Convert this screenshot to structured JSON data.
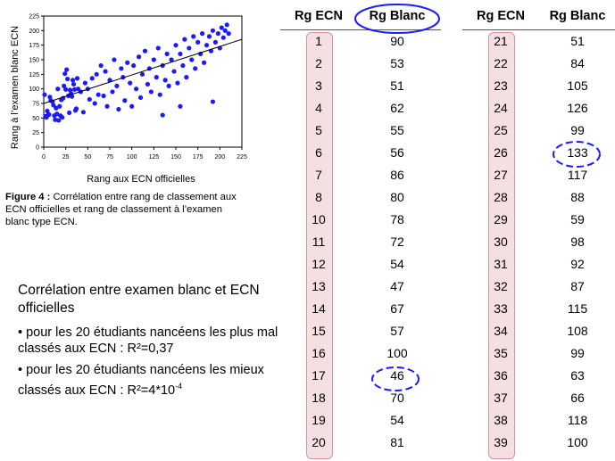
{
  "chart_data": {
    "type": "scatter",
    "xlabel": "Rang aux ECN officielles",
    "ylabel": "Rang à l’examen blanc ECN",
    "xlim": [
      0,
      225
    ],
    "ylim": [
      0,
      225
    ],
    "xticks": [
      "0",
      "25",
      "50",
      "75",
      "100",
      "125",
      "150",
      "175",
      "200",
      "225"
    ],
    "yticks": [
      "0",
      "25",
      "50",
      "75",
      "100",
      "125",
      "150",
      "175",
      "200",
      "225"
    ],
    "point_color": "#1a1aff",
    "trendline": {
      "x": [
        0,
        225
      ],
      "y": [
        75,
        185
      ]
    },
    "points": [
      [
        1,
        90
      ],
      [
        2,
        53
      ],
      [
        3,
        51
      ],
      [
        4,
        62
      ],
      [
        5,
        55
      ],
      [
        6,
        56
      ],
      [
        7,
        86
      ],
      [
        8,
        80
      ],
      [
        10,
        78
      ],
      [
        11,
        72
      ],
      [
        12,
        54
      ],
      [
        13,
        47
      ],
      [
        14,
        67
      ],
      [
        15,
        57
      ],
      [
        16,
        100
      ],
      [
        17,
        46
      ],
      [
        18,
        70
      ],
      [
        19,
        54
      ],
      [
        20,
        81
      ],
      [
        21,
        51
      ],
      [
        22,
        84
      ],
      [
        23,
        105
      ],
      [
        24,
        126
      ],
      [
        25,
        99
      ],
      [
        26,
        133
      ],
      [
        27,
        117
      ],
      [
        28,
        88
      ],
      [
        29,
        59
      ],
      [
        30,
        98
      ],
      [
        31,
        92
      ],
      [
        32,
        87
      ],
      [
        33,
        115
      ],
      [
        34,
        108
      ],
      [
        35,
        99
      ],
      [
        36,
        63
      ],
      [
        37,
        66
      ],
      [
        38,
        118
      ],
      [
        39,
        100
      ],
      [
        42,
        95
      ],
      [
        45,
        60
      ],
      [
        47,
        110
      ],
      [
        50,
        100
      ],
      [
        52,
        82
      ],
      [
        55,
        118
      ],
      [
        58,
        75
      ],
      [
        60,
        125
      ],
      [
        62,
        90
      ],
      [
        65,
        140
      ],
      [
        68,
        88
      ],
      [
        70,
        130
      ],
      [
        72,
        70
      ],
      [
        75,
        115
      ],
      [
        78,
        95
      ],
      [
        80,
        150
      ],
      [
        83,
        105
      ],
      [
        85,
        65
      ],
      [
        88,
        135
      ],
      [
        90,
        120
      ],
      [
        92,
        80
      ],
      [
        95,
        145
      ],
      [
        98,
        110
      ],
      [
        100,
        70
      ],
      [
        102,
        140
      ],
      [
        105,
        100
      ],
      [
        108,
        155
      ],
      [
        110,
        85
      ],
      [
        112,
        125
      ],
      [
        115,
        165
      ],
      [
        118,
        108
      ],
      [
        120,
        135
      ],
      [
        122,
        95
      ],
      [
        125,
        150
      ],
      [
        128,
        120
      ],
      [
        130,
        170
      ],
      [
        132,
        90
      ],
      [
        135,
        140
      ],
      [
        138,
        115
      ],
      [
        140,
        160
      ],
      [
        142,
        105
      ],
      [
        145,
        150
      ],
      [
        148,
        130
      ],
      [
        150,
        175
      ],
      [
        152,
        110
      ],
      [
        155,
        160
      ],
      [
        158,
        140
      ],
      [
        160,
        185
      ],
      [
        162,
        120
      ],
      [
        165,
        170
      ],
      [
        168,
        150
      ],
      [
        170,
        190
      ],
      [
        172,
        135
      ],
      [
        175,
        180
      ],
      [
        178,
        160
      ],
      [
        180,
        195
      ],
      [
        182,
        145
      ],
      [
        185,
        175
      ],
      [
        188,
        190
      ],
      [
        190,
        165
      ],
      [
        192,
        200
      ],
      [
        195,
        180
      ],
      [
        198,
        195
      ],
      [
        200,
        170
      ],
      [
        202,
        205
      ],
      [
        204,
        188
      ],
      [
        206,
        200
      ],
      [
        208,
        210
      ],
      [
        210,
        195
      ],
      [
        192,
        78
      ],
      [
        155,
        70
      ],
      [
        135,
        55
      ]
    ]
  },
  "caption": {
    "label": "Figure 4 :",
    "text": " Corrélation entre rang de classement aux ECN officielles et rang de classement à l’examen blanc type ECN."
  },
  "text": {
    "heading": "Corrélation entre examen blanc et ECN officielles",
    "bullet1": "• pour les 20 étudiants nancéens les plus mal classés aux ECN : R²=0,37",
    "bullet2_main": "• pour les 20 étudiants nancéens les mieux classés aux ECN : R²=4*10",
    "bullet2_exp": "-4"
  },
  "table": {
    "col_rank": "Rg ECN",
    "col_blank": "Rg Blanc",
    "left": [
      [
        "1",
        "90"
      ],
      [
        "2",
        "53"
      ],
      [
        "3",
        "51"
      ],
      [
        "4",
        "62"
      ],
      [
        "5",
        "55"
      ],
      [
        "6",
        "56"
      ],
      [
        "7",
        "86"
      ],
      [
        "8",
        "80"
      ],
      [
        "10",
        "78"
      ],
      [
        "11",
        "72"
      ],
      [
        "12",
        "54"
      ],
      [
        "13",
        "47"
      ],
      [
        "14",
        "67"
      ],
      [
        "15",
        "57"
      ],
      [
        "16",
        "100"
      ],
      [
        "17",
        "46"
      ],
      [
        "18",
        "70"
      ],
      [
        "19",
        "54"
      ],
      [
        "20",
        "81"
      ]
    ],
    "right": [
      [
        "21",
        "51"
      ],
      [
        "22",
        "84"
      ],
      [
        "23",
        "105"
      ],
      [
        "24",
        "126"
      ],
      [
        "25",
        "99"
      ],
      [
        "26",
        "133"
      ],
      [
        "27",
        "117"
      ],
      [
        "28",
        "88"
      ],
      [
        "29",
        "59"
      ],
      [
        "30",
        "98"
      ],
      [
        "31",
        "92"
      ],
      [
        "32",
        "87"
      ],
      [
        "33",
        "115"
      ],
      [
        "34",
        "108"
      ],
      [
        "35",
        "99"
      ],
      [
        "36",
        "63"
      ],
      [
        "37",
        "66"
      ],
      [
        "38",
        "118"
      ],
      [
        "39",
        "100"
      ]
    ],
    "highlight_circle_color": "#1a1aff",
    "rank_box_color": "#f4dfe3"
  }
}
